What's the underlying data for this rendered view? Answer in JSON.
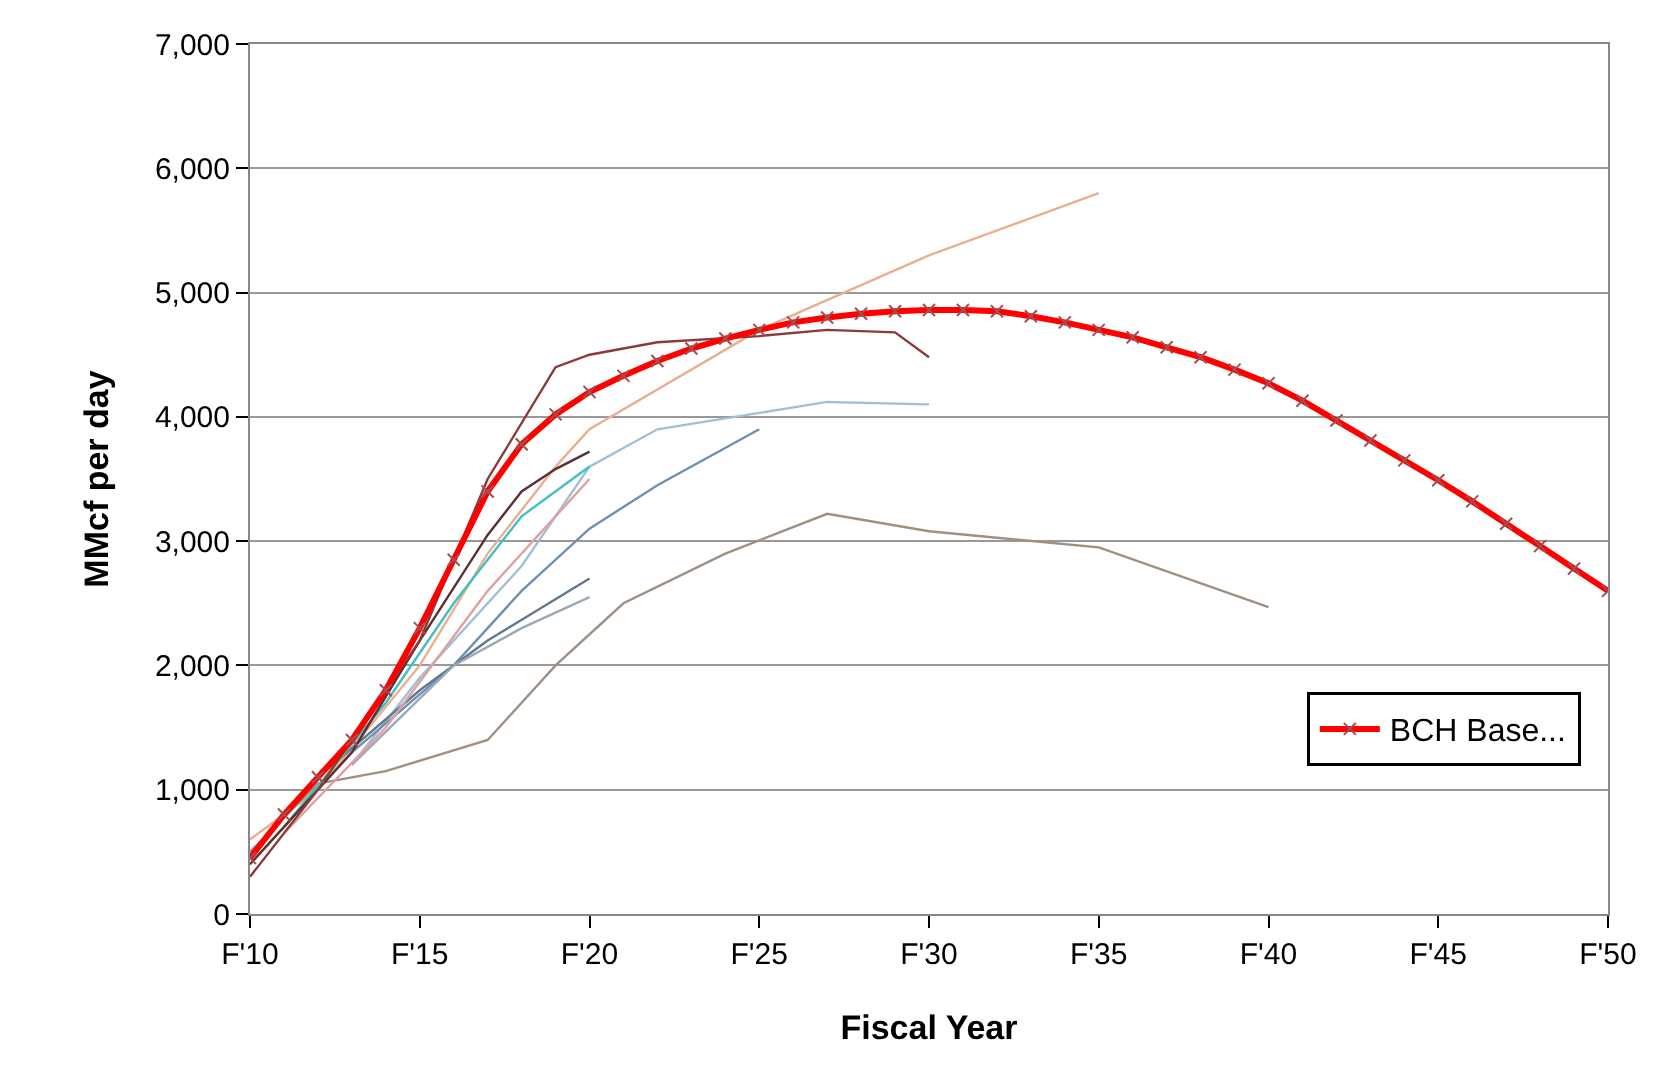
{
  "chart_data": {
    "type": "line",
    "xlabel": "Fiscal Year",
    "ylabel": "MMcf per day",
    "xlim": [
      10,
      50
    ],
    "ylim": [
      0,
      7000
    ],
    "xticks": [
      {
        "value": 10,
        "label": "F'10"
      },
      {
        "value": 15,
        "label": "F'15"
      },
      {
        "value": 20,
        "label": "F'20"
      },
      {
        "value": 25,
        "label": "F'25"
      },
      {
        "value": 30,
        "label": "F'30"
      },
      {
        "value": 35,
        "label": "F'35"
      },
      {
        "value": 40,
        "label": "F'40"
      },
      {
        "value": 45,
        "label": "F'45"
      },
      {
        "value": 50,
        "label": "F'50"
      }
    ],
    "yticks": [
      0,
      {
        "value": 1000,
        "label": "1,000"
      },
      {
        "value": 2000,
        "label": "2,000"
      },
      {
        "value": 3000,
        "label": "3,000"
      },
      {
        "value": 4000,
        "label": "4,000"
      },
      {
        "value": 5000,
        "label": "5,000"
      },
      {
        "value": 6000,
        "label": "6,000"
      },
      {
        "value": 7000,
        "label": "7,000"
      }
    ],
    "grid": "y",
    "legend": "bottom right",
    "line_style": "solid",
    "series": [
      {
        "color": "#e8b090",
        "x": [
          10,
          12,
          15,
          17,
          19,
          20,
          25,
          30,
          35
        ],
        "values": [
          600,
          1000,
          2000,
          2900,
          3600,
          3900,
          4700,
          5300,
          5800
        ]
      },
      {
        "color": "#a09080",
        "x": [
          10,
          12,
          14,
          17,
          19,
          21,
          24,
          27,
          30,
          35,
          40
        ],
        "values": [
          500,
          1050,
          1150,
          1400,
          2000,
          2500,
          2900,
          3220,
          3080,
          2950,
          2470
        ]
      },
      {
        "color": "#a0c0d8",
        "x": [
          13,
          15,
          18,
          20,
          22,
          27,
          30
        ],
        "values": [
          1200,
          1900,
          2800,
          3600,
          3900,
          4120,
          4100
        ]
      },
      {
        "color": "#7090b0",
        "x": [
          13,
          16,
          18,
          20,
          22,
          25
        ],
        "values": [
          1300,
          2000,
          2600,
          3100,
          3450,
          3900
        ]
      },
      {
        "color": "#607890",
        "x": [
          12,
          15,
          17,
          20
        ],
        "values": [
          1100,
          1800,
          2200,
          2700
        ]
      },
      {
        "color": "#9aa8b8",
        "x": [
          13,
          16,
          18,
          20
        ],
        "values": [
          1200,
          2000,
          2300,
          2550
        ]
      },
      {
        "color": "#40c0c0",
        "x": [
          11,
          14,
          16,
          18,
          20
        ],
        "values": [
          700,
          1700,
          2500,
          3200,
          3600
        ]
      },
      {
        "color": "#e0a0a0",
        "x": [
          11,
          14,
          17,
          20
        ],
        "values": [
          650,
          1500,
          2600,
          3500
        ]
      },
      {
        "color": "#5a3030",
        "x": [
          10,
          13,
          15,
          17,
          18,
          19,
          20
        ],
        "values": [
          400,
          1300,
          2200,
          3050,
          3400,
          3580,
          3720
        ]
      },
      {
        "color": "#8b3a3a",
        "x": [
          10,
          12,
          15,
          17,
          19,
          20,
          22,
          25,
          27,
          29,
          30
        ],
        "values": [
          300,
          1000,
          2200,
          3500,
          4400,
          4500,
          4600,
          4650,
          4700,
          4680,
          4480
        ]
      },
      {
        "name": "BCH Base...",
        "color": "#ff0000",
        "marker": "cross",
        "x": [
          10,
          11,
          12,
          13,
          14,
          15,
          16,
          17,
          18,
          19,
          20,
          21,
          22,
          23,
          24,
          25,
          26,
          27,
          28,
          29,
          30,
          31,
          32,
          33,
          34,
          35,
          36,
          37,
          38,
          39,
          40,
          41,
          42,
          43,
          44,
          45,
          46,
          47,
          48,
          49,
          50
        ],
        "values": [
          450,
          800,
          1100,
          1400,
          1800,
          2300,
          2850,
          3400,
          3780,
          4020,
          4200,
          4330,
          4450,
          4550,
          4630,
          4700,
          4760,
          4800,
          4830,
          4850,
          4860,
          4860,
          4850,
          4810,
          4760,
          4700,
          4640,
          4560,
          4480,
          4380,
          4270,
          4130,
          3970,
          3810,
          3650,
          3490,
          3320,
          3140,
          2960,
          2780,
          2600
        ]
      }
    ]
  }
}
